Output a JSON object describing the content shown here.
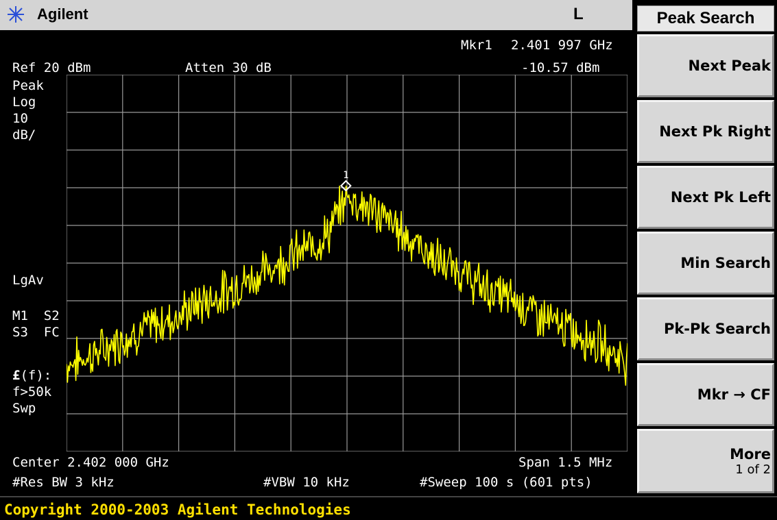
{
  "header": {
    "brand": "Agilent",
    "brand_icon": "agilent-spark-icon",
    "mode_indicator": "L"
  },
  "screen": {
    "marker_label": "Mkr1",
    "marker_freq": "2.401 997 GHz",
    "marker_level": "-10.57 dBm",
    "ref_level": "Ref 20 dBm",
    "attenuation": "Atten 30 dB",
    "left_annotations": {
      "detector": "Peak",
      "scale_type": "Log",
      "scale_value": "10",
      "scale_unit": "dB/",
      "avg_type": "LgAv",
      "m1s2": "M1  S2",
      "s3fc": "S3  FC",
      "func_pre": "(f):",
      "func_symbol": "£",
      "f_gt": "f>50k",
      "swp": "Swp"
    },
    "center": "Center 2.402 000 GHz",
    "span": "Span 1.5 MHz",
    "res_bw": "#Res BW 3 kHz",
    "vbw": "#VBW 10 kHz",
    "sweep": "#Sweep 100 s (601 pts)",
    "marker_number": "1"
  },
  "softkeys": {
    "title": "Peak Search",
    "items": [
      {
        "label": "Next Peak"
      },
      {
        "label": "Next Pk Right"
      },
      {
        "label": "Next Pk Left"
      },
      {
        "label": "Min Search"
      },
      {
        "label": "Pk-Pk Search"
      },
      {
        "label": "Mkr → CF"
      },
      {
        "label": "More",
        "sub": "1 of 2"
      }
    ]
  },
  "footer": {
    "copyright": "Copyright 2000-2003 Agilent Technologies"
  },
  "colors": {
    "trace": "#ffff00",
    "grid": "#9a9a9a",
    "copyright_text": "#ffe000"
  },
  "chart_data": {
    "type": "line",
    "xlabel": "",
    "ylabel": "",
    "x_range_ghz": [
      2.40125,
      2.40275
    ],
    "ylim": [
      -80,
      20
    ],
    "grid": true,
    "x_divisions": 10,
    "y_divisions": 10,
    "series": [
      {
        "x": [
          2.40125,
          2.4013,
          2.40135,
          2.4014,
          2.40145,
          2.4015,
          2.40155,
          2.4016,
          2.40165,
          2.4017,
          2.40175,
          2.4018,
          2.40185,
          2.4019,
          2.40195,
          2.402,
          2.40205,
          2.4021,
          2.40215,
          2.4022,
          2.40225,
          2.4023,
          2.40235,
          2.4024,
          2.40245,
          2.4025,
          2.40255,
          2.4026,
          2.40265,
          2.4027,
          2.40275
        ],
        "values": [
          -57,
          -55,
          -53,
          -50,
          -48,
          -46,
          -44,
          -41,
          -39,
          -36,
          -34,
          -31,
          -28,
          -26,
          -22,
          -12,
          -15,
          -18,
          -22,
          -26,
          -30,
          -32,
          -36,
          -38,
          -40,
          -43,
          -46,
          -48,
          -50,
          -53,
          -56
        ]
      }
    ],
    "markers": [
      {
        "label": "1",
        "x": 2.401997,
        "y": -10.57
      }
    ]
  }
}
